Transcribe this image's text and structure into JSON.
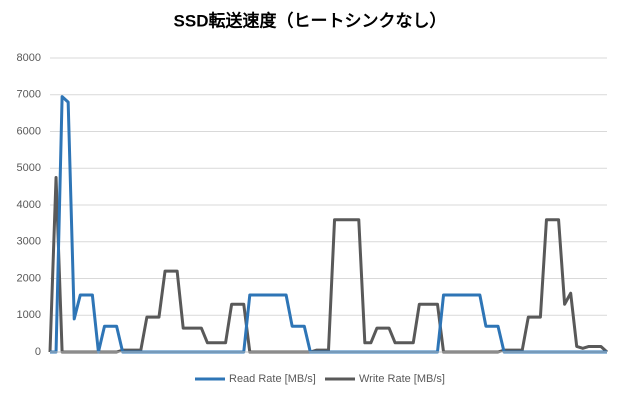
{
  "chart_data": {
    "type": "line",
    "title": "SSD転送速度（ヒートシンクなし）",
    "ylim": [
      0,
      8000
    ],
    "yticks": [
      0,
      1000,
      2000,
      3000,
      4000,
      5000,
      6000,
      7000,
      8000
    ],
    "grid": true,
    "legend": "bottom",
    "series": [
      {
        "name": "Read Rate [MB/s]",
        "color": "#2e75b6",
        "values": [
          0,
          0,
          6950,
          6800,
          900,
          1550,
          1550,
          1550,
          0,
          700,
          700,
          700,
          0,
          0,
          0,
          0,
          0,
          0,
          0,
          0,
          0,
          0,
          0,
          0,
          0,
          0,
          0,
          0,
          0,
          0,
          0,
          0,
          0,
          1550,
          1550,
          1550,
          1550,
          1550,
          1550,
          1550,
          700,
          700,
          700,
          0,
          0,
          0,
          0,
          0,
          0,
          0,
          0,
          0,
          0,
          0,
          0,
          0,
          0,
          0,
          0,
          0,
          0,
          0,
          0,
          0,
          0,
          1550,
          1550,
          1550,
          1550,
          1550,
          1550,
          1550,
          700,
          700,
          700,
          0,
          0,
          0,
          0,
          0,
          0,
          0,
          0,
          0,
          0,
          0,
          0,
          0,
          0,
          0,
          0,
          0,
          0
        ]
      },
      {
        "name": "Write Rate [MB/s]",
        "color": "#595959",
        "values": [
          0,
          4750,
          0,
          0,
          0,
          0,
          0,
          0,
          0,
          0,
          0,
          0,
          50,
          50,
          50,
          50,
          950,
          950,
          950,
          2200,
          2200,
          2200,
          650,
          650,
          650,
          650,
          250,
          250,
          250,
          250,
          1300,
          1300,
          1300,
          0,
          0,
          0,
          0,
          0,
          0,
          0,
          0,
          0,
          0,
          0,
          50,
          50,
          50,
          3600,
          3600,
          3600,
          3600,
          3600,
          250,
          250,
          650,
          650,
          650,
          250,
          250,
          250,
          250,
          1300,
          1300,
          1300,
          1300,
          0,
          0,
          0,
          0,
          0,
          0,
          0,
          0,
          0,
          0,
          50,
          50,
          50,
          50,
          950,
          950,
          950,
          3600,
          3600,
          3600,
          1300,
          1600,
          150,
          100,
          150,
          150,
          150,
          0
        ]
      }
    ]
  }
}
